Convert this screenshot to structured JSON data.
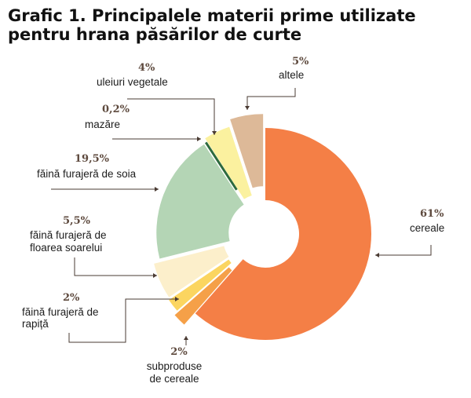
{
  "title_lines": [
    "Grafic 1. Principalele materii prime utilizate",
    "pentru hrana păsărilor de curte"
  ],
  "chart_data": {
    "type": "pie",
    "style": "donut with exploded slices",
    "title": "Grafic 1. Principalele materii prime utilizate pentru hrana păsărilor de curte",
    "unit": "%",
    "slices": [
      {
        "id": "cereale",
        "value": 61,
        "pct_label": "61%",
        "label_lines": [
          "cereale"
        ],
        "color": "#f47f46"
      },
      {
        "id": "subproduse",
        "value": 2,
        "pct_label": "2%",
        "label_lines": [
          "subproduse",
          "de cereale"
        ],
        "color": "#f5a048"
      },
      {
        "id": "rapita",
        "value": 2,
        "pct_label": "2%",
        "label_lines": [
          "făină furajeră de",
          "rapiță"
        ],
        "color": "#fbd560"
      },
      {
        "id": "floarea",
        "value": 5.5,
        "pct_label": "5,5%",
        "label_lines": [
          "făină furajeră de",
          "floarea soarelui"
        ],
        "color": "#fcefcb"
      },
      {
        "id": "soia",
        "value": 19.5,
        "pct_label": "19,5%",
        "label_lines": [
          "făină furajeră de soia"
        ],
        "color": "#b4d5b5"
      },
      {
        "id": "mazare",
        "value": 0.2,
        "pct_label": "0,2%",
        "label_lines": [
          "mazăre"
        ],
        "color": "#2d6a3e"
      },
      {
        "id": "uleiuri",
        "value": 4,
        "pct_label": "4%",
        "label_lines": [
          "uleiuri vegetale"
        ],
        "color": "#fbf19f"
      },
      {
        "id": "altele",
        "value": 5,
        "pct_label": "5%",
        "label_lines": [
          "altele"
        ],
        "color": "#ddb998"
      }
    ]
  }
}
